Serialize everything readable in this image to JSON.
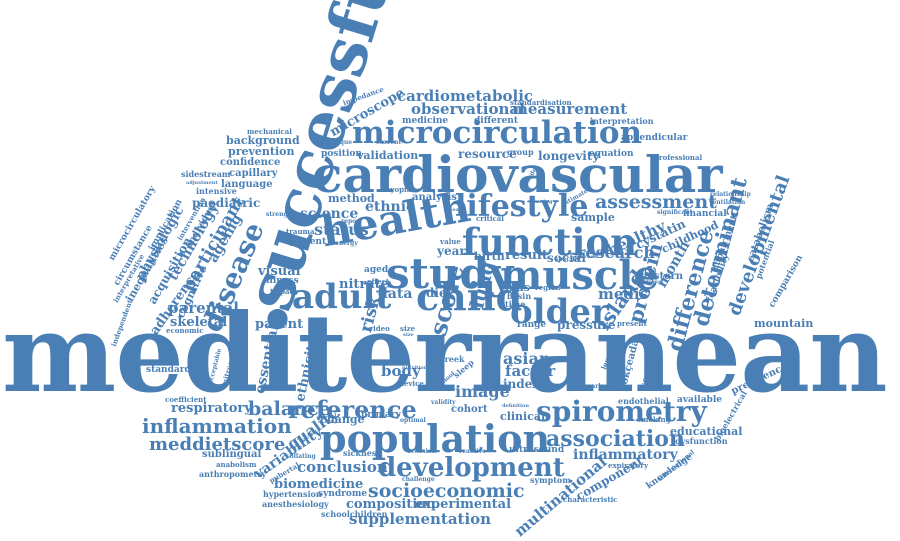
{
  "words": {
    "mediterranean": "mediterranean",
    "successful": "successful",
    "cardiovascular": "cardiovascular",
    "microcirculation": "microcirculation",
    "health": "health",
    "function": "function",
    "lifestyle": "lifestyle",
    "study": "study",
    "muscle": "muscle",
    "adult": "adult",
    "child": "child",
    "older": "older",
    "disease": "disease",
    "population": "population",
    "development": "development",
    "spirometry": "spirometry",
    "association": "association",
    "reference": "reference",
    "balance": "balance",
    "socioeconomic": "socioeconomic",
    "supplementation": "supplementation",
    "inflammation": "inflammation",
    "meddietscore": "meddietscore",
    "respiratory": "respiratory",
    "cardiometabolic": "cardiometabolic",
    "observational": "observational",
    "measurement": "measurement",
    "assessment": "assessment",
    "determinant": "determinant",
    "developmental": "developmental",
    "difference": "difference",
    "research": "research",
    "protein": "protein",
    "island": "island",
    "score": "score",
    "lung": "lung",
    "status": "status",
    "method": "method",
    "science": "science",
    "ethnic": "ethnic",
    "paediatric": "paediatric",
    "participant": "participant",
    "technology": "technology",
    "acquisition": "acquisition",
    "physiologic": "physiologic",
    "adherence": "adherence",
    "cognitive": "cognitive",
    "ageing": "ageing",
    "parental": "parental",
    "skeletal": "skeletal",
    "parent": "parent",
    "visual": "visual",
    "nitrate": "nitrate",
    "data": "data",
    "diet": "diet",
    "medis": "medis",
    "month": "month",
    "healthy": "healthy",
    "childhood": "childhood",
    "cystatin": "cystatin",
    "financial": "financial",
    "sample": "sample",
    "eastern": "eastern",
    "birth": "birth",
    "result": "result",
    "social": "social",
    "year": "year",
    "mas": "mas",
    "basin": "basin",
    "time": "time",
    "image": "image",
    "factor": "factor",
    "asian": "asian",
    "index": "index",
    "body": "body",
    "ethnicity": "ethnicity",
    "essential": "essential",
    "quality": "quality",
    "variability": "variability",
    "conclusion": "conclusion",
    "biomedicine": "biomedicine",
    "composition": "composition",
    "experimental": "experimental",
    "multinational": "multinational",
    "component": "component",
    "inflammatory": "inflammatory",
    "educational": "educational",
    "dysfunction": "dysfunction",
    "endothelial": "endothelial",
    "available": "available",
    "change": "change",
    "primary": "primary",
    "cohort": "cohort",
    "clinical": "clinical",
    "ultrasound": "ultrasound",
    "sickness": "sickness",
    "syndrome": "syndrome",
    "hypertension": "hypertension",
    "anesthesiology": "anesthesiology",
    "schoolchildren": "schoolchildren",
    "challenge": "challenge",
    "symptom": "symptom",
    "characteristic": "characteristic",
    "knowledge": "knowledge",
    "sublingual": "sublingual",
    "anabolism": "anabolism",
    "anthropometry": "anthropometry",
    "coefficient": "coefficient",
    "standard": "standard",
    "mountain": "mountain",
    "prevalence": "prevalence",
    "comparison": "comparison",
    "catabolism": "catabolism",
    "feasibility": "feasibility",
    "impairment": "impairment",
    "prevention": "prevention",
    "confidence": "confidence",
    "capillary": "capillary",
    "background": "background",
    "mechanical": "mechanical",
    "sidestream": "sidestream",
    "language": "language",
    "intensive": "intensive",
    "microscope": "microscope",
    "position": "position",
    "validation": "validation",
    "resource": "resource",
    "group": "group",
    "longevity": "longevity",
    "equation": "equation",
    "appendicular": "appendicular",
    "interpretation": "interpretation",
    "standardisation": "standardisation",
    "medicine": "medicine",
    "different": "different",
    "analysis": "analysis",
    "myopia": "myopia",
    "impedance": "impedance",
    "microcirculatory": "microcirculatory",
    "inequalities": "inequalities",
    "implication": "implication",
    "interpretative": "interpretative",
    "circumstance": "circumstance",
    "independent": "independent",
    "economic": "economic",
    "pressure": "pressure",
    "range": "range",
    "higher": "higher",
    "gökçeada": "gökçeada",
    "screening": "screening",
    "present": "present",
    "risk": "risk",
    "video": "video",
    "aged": "aged",
    "illness": "illness",
    "effect": "effect",
    "impact": "impact",
    "nutrition": "nutrition",
    "professional": "professional",
    "ventilation": "ventilation",
    "relationship": "relationship",
    "significant": "significant",
    "estimate": "estimate",
    "potential": "potential",
    "strength": "strength",
    "greek": "greek",
    "device": "device",
    "smoking": "smoking",
    "bioelectrical": "bioelectrical",
    "critical": "critical",
    "report": "report",
    "patient": "patient",
    "trauma": "trauma",
    "energy": "energy",
    "value": "value",
    "region": "region",
    "marker": "marker",
    "reactive": "reactive",
    "occasion": "occasion",
    "pubertal": "pubertal",
    "collating": "collating",
    "nitrogen": "nitrogen",
    "acceptable": "acceptable",
    "expiratory": "expiratory",
    "international": "international",
    "adjustment": "adjustment",
    "intervention": "intervention",
    "individual": "individual",
    "physique": "physique",
    "current": "current",
    "disease2": "disease",
    "size": "size",
    "sleep": "sleep",
    "school": "school",
    "definition": "definition",
    "optimal": "optimal",
    "validity": "validity",
    "national": "national",
    "specific": "specific",
    "process": "process",
    "leucine": "leucine",
    "altitude": "altitude",
    "fasting": "fasting"
  }
}
